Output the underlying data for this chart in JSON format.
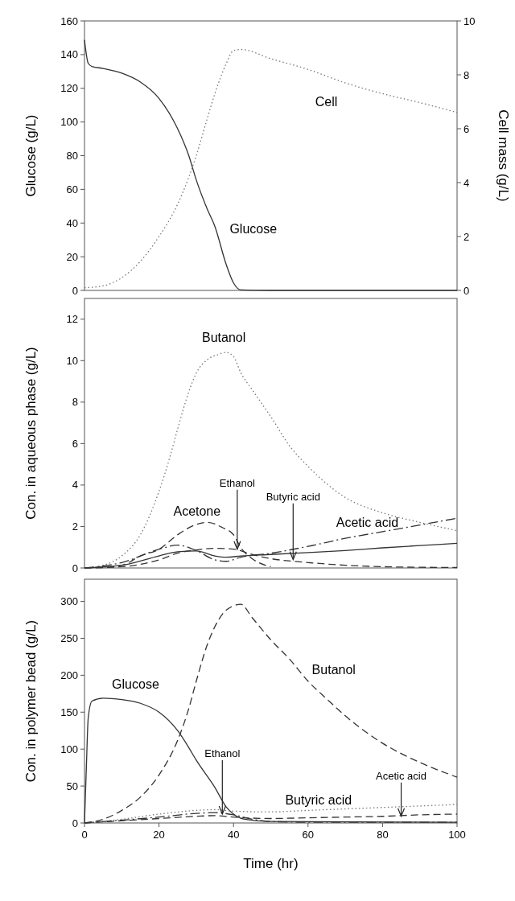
{
  "chart_data": [
    {
      "type": "line",
      "ylabel": "Glucose (g/L)",
      "y2label": "Cell mass (g/L)",
      "xlim": [
        0,
        100
      ],
      "ylim": [
        0,
        160
      ],
      "yticks": [
        0,
        20,
        40,
        60,
        80,
        100,
        120,
        140,
        160
      ],
      "y2lim": [
        0,
        10
      ],
      "y2ticks": [
        0,
        2,
        4,
        6,
        8,
        10
      ],
      "tick_labels": "y",
      "series": [
        {
          "name": "Glucose",
          "color": "#333333",
          "line_style": "solid",
          "x": [
            0,
            1,
            2,
            5,
            10,
            15,
            20,
            25,
            28,
            30,
            33,
            35,
            38,
            40,
            42,
            50,
            60,
            70,
            80,
            90,
            100
          ],
          "values": [
            148.7,
            134.8,
            133,
            131.8,
            129,
            123.7,
            114,
            96,
            80,
            65.6,
            48,
            38,
            15.6,
            4.4,
            0.3,
            0,
            0,
            0,
            0,
            0,
            0
          ]
        },
        {
          "name": "Cell",
          "color": "#777777",
          "line_style": "dotted",
          "axis": "y2",
          "x": [
            0,
            5,
            10,
            15,
            20,
            25,
            28,
            30,
            33,
            35,
            38,
            40,
            42,
            50,
            60,
            70,
            80,
            90,
            100
          ],
          "values": [
            0.1,
            0.17,
            0.47,
            1.08,
            2.0,
            3.2,
            4.2,
            5.0,
            6.4,
            7.3,
            8.4,
            8.9,
            8.94,
            8.6,
            8.2,
            7.7,
            7.3,
            6.97,
            6.6
          ]
        }
      ]
    },
    {
      "type": "line",
      "ylabel": "Con. in aqueous phase (g/L)",
      "xlim": [
        0,
        100
      ],
      "ylim": [
        0,
        13
      ],
      "yticks": [
        0,
        2,
        4,
        6,
        8,
        10,
        12
      ],
      "tick_labels": "y",
      "annotations": [
        {
          "text": "Ethanol",
          "x": 41,
          "y": 0.9
        },
        {
          "text": "Butyric acid",
          "x": 56,
          "y": 0.4
        }
      ],
      "series": [
        {
          "name": "Butanol",
          "color": "#777777",
          "line_style": "dotted",
          "x": [
            0,
            5,
            10,
            15,
            20,
            23,
            25,
            28,
            30,
            33,
            36,
            38,
            40,
            42,
            45,
            50,
            55,
            60,
            70,
            80,
            90,
            100
          ],
          "values": [
            0,
            0.13,
            0.58,
            1.6,
            3.7,
            5.4,
            6.7,
            8.5,
            9.4,
            10.05,
            10.3,
            10.4,
            10.2,
            9.4,
            8.6,
            7.3,
            5.9,
            4.9,
            3.4,
            2.66,
            2.2,
            1.8
          ]
        },
        {
          "name": "Acetone",
          "color": "#333333",
          "line_style": "dashed",
          "x": [
            0,
            10,
            15,
            20,
            25,
            30,
            33,
            37,
            40,
            42,
            45,
            50
          ],
          "values": [
            0,
            0.13,
            0.58,
            0.9,
            1.6,
            2.1,
            2.2,
            1.95,
            1.6,
            0.97,
            0.45,
            0.06
          ]
        },
        {
          "color": "#333333",
          "line_style": "solid",
          "x": [
            0,
            10,
            20,
            25,
            30,
            35,
            38,
            42,
            50,
            60,
            70,
            80,
            90,
            100
          ],
          "values": [
            0,
            0.13,
            0.58,
            0.78,
            0.82,
            0.58,
            0.52,
            0.58,
            0.65,
            0.74,
            0.84,
            0.97,
            1.08,
            1.19
          ]
        },
        {
          "color": "#333333",
          "line_style": "dashed",
          "x": [
            0,
            10,
            20,
            25,
            30,
            35,
            40,
            45,
            50,
            56,
            60,
            70,
            80,
            100
          ],
          "values": [
            0,
            0.06,
            0.39,
            0.71,
            0.87,
            0.95,
            0.91,
            0.65,
            0.45,
            0.32,
            0.26,
            0.13,
            0.06,
            0.02
          ]
        },
        {
          "name": "Acetic acid",
          "color": "#333333",
          "line_style": "dashdot",
          "x": [
            0,
            10,
            20,
            25,
            30,
            35,
            38,
            42,
            50,
            60,
            70,
            80,
            90,
            100
          ],
          "values": [
            0,
            0.26,
            0.9,
            1.1,
            0.84,
            0.39,
            0.32,
            0.52,
            0.71,
            1.04,
            1.43,
            1.75,
            2.07,
            2.4
          ]
        }
      ]
    },
    {
      "type": "line",
      "ylabel": "Con. in polymer bead (g/L)",
      "xlabel": "Time (hr)",
      "xlim": [
        0,
        100
      ],
      "xticks": [
        0,
        20,
        40,
        60,
        80,
        100
      ],
      "ylim": [
        0,
        330
      ],
      "yticks": [
        0,
        50,
        100,
        150,
        200,
        250,
        300
      ],
      "annotations": [
        {
          "text": "Ethanol",
          "x": 37,
          "y": 12
        },
        {
          "text": "Acetic acid",
          "x": 85,
          "y": 9
        }
      ],
      "series": [
        {
          "name": "Glucose",
          "color": "#333333",
          "line_style": "solid",
          "x": [
            0,
            0.5,
            1,
            2,
            5,
            10,
            15,
            20,
            25,
            28,
            30,
            35,
            38,
            40,
            43,
            50,
            100
          ],
          "values": [
            0,
            75,
            142,
            165,
            169,
            167,
            162,
            150,
            125,
            102,
            85,
            48,
            22,
            12,
            5,
            2,
            1
          ]
        },
        {
          "name": "Butanol",
          "color": "#333333",
          "line_style": "dashed",
          "x": [
            0,
            5,
            10,
            15,
            20,
            25,
            28,
            30,
            33,
            36,
            38,
            42,
            45,
            50,
            55,
            60,
            65,
            70,
            80,
            90,
            100
          ],
          "values": [
            0,
            5,
            17,
            35,
            65,
            112,
            155,
            192,
            242,
            275,
            288,
            296,
            278,
            248,
            222,
            192,
            168,
            145,
            108,
            82,
            62
          ]
        },
        {
          "color": "#333333",
          "line_style": "dashdot",
          "x": [
            0,
            20,
            30,
            35,
            40,
            45,
            50,
            60,
            100
          ],
          "values": [
            0,
            8,
            13,
            14,
            11,
            5,
            2,
            1,
            1
          ]
        },
        {
          "name": "Butyric acid",
          "color": "#777777",
          "line_style": "dotted",
          "x": [
            0,
            10,
            20,
            30,
            35,
            40,
            50,
            60,
            70,
            80,
            90,
            100
          ],
          "values": [
            0,
            5,
            12,
            17,
            18,
            16,
            15,
            17,
            19,
            21,
            23,
            25
          ]
        },
        {
          "color": "#333333",
          "line_style": "dashed",
          "x": [
            0,
            20,
            30,
            35,
            40,
            50,
            60,
            70,
            80,
            90,
            100
          ],
          "values": [
            0,
            6,
            9,
            10,
            8,
            6,
            7,
            8,
            9,
            11,
            12
          ]
        }
      ]
    }
  ]
}
